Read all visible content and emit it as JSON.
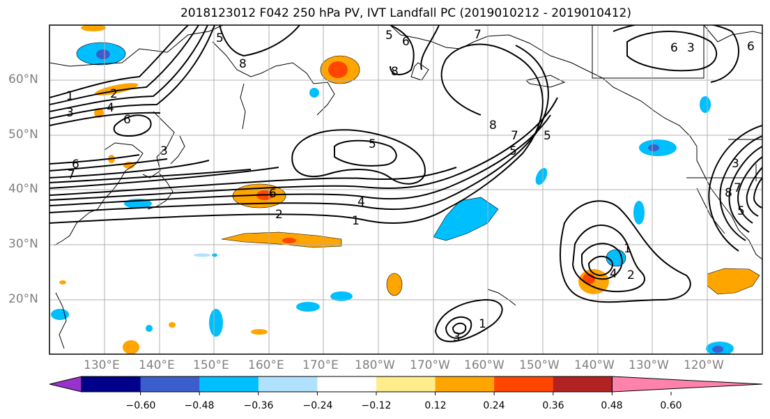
{
  "title": "2018123012 F042 250 hPa PV, IVT Landfall PC (2019010212 - 2019010412)",
  "map": {
    "projection": "cylindrical",
    "lon_range_deg_east": [
      120,
      250
    ],
    "lat_range_deg": [
      10,
      70
    ],
    "lat_labels": [
      "60°N",
      "50°N",
      "40°N",
      "30°N",
      "20°N"
    ],
    "lon_labels": [
      "130°E",
      "140°E",
      "150°E",
      "160°E",
      "170°E",
      "180°W",
      "170°W",
      "160°W",
      "150°W",
      "140°W",
      "130°W",
      "120°W"
    ],
    "gridlines": true,
    "contour_labels": [
      "1",
      "2",
      "4",
      "3",
      "6",
      "6",
      "7",
      "5",
      "5",
      "6",
      "7",
      "8",
      "5",
      "8",
      "8",
      "7",
      "5",
      "5",
      "6",
      "4",
      "2",
      "1",
      "6",
      "1",
      "4",
      "2",
      "3",
      "1",
      "3",
      "8",
      "7",
      "5",
      "6",
      "3",
      "3"
    ]
  },
  "colorbar": {
    "tick_labels": [
      "−0.60",
      "−0.48",
      "−0.36",
      "−0.24",
      "−0.12",
      "0.12",
      "0.24",
      "0.36",
      "0.48",
      "0.60"
    ],
    "colors": [
      "#9932cc",
      "#00008b",
      "#3a5fcd",
      "#00bfff",
      "#b0e2ff",
      "#ffffff",
      "#ffec8b",
      "#ffa500",
      "#ff4500",
      "#b22222",
      "#ff82ab"
    ],
    "extend": "both"
  }
}
